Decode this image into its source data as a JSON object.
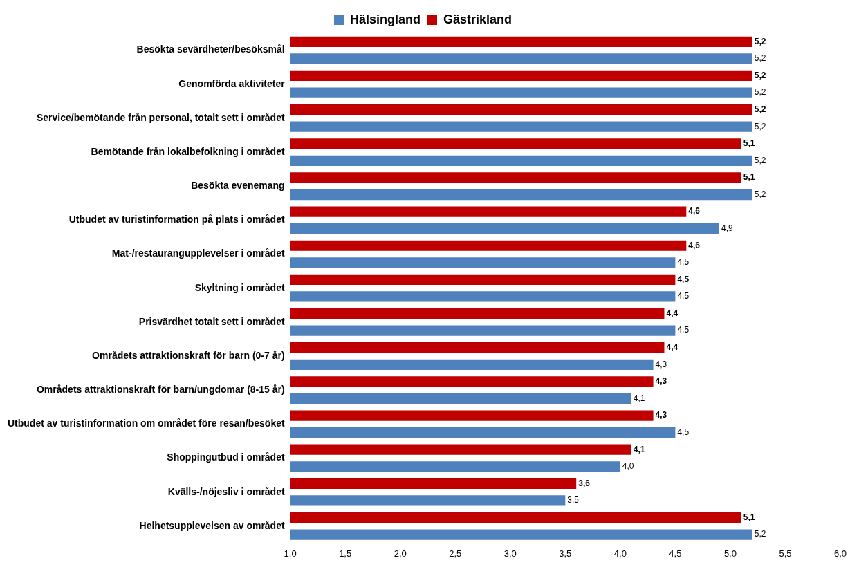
{
  "chart_data": {
    "type": "bar",
    "orientation": "horizontal",
    "legend": "top",
    "grid": false,
    "categories": [
      "Besökta sevärdheter/besöksmål",
      "Genomförda aktiviteter",
      "Service/bemötande från personal, totalt sett i området",
      "Bemötande från lokalbefolkning i området",
      "Besökta evenemang",
      "Utbudet av turistinformation på plats i området",
      "Mat-/restaurangupplevelser i området",
      "Skyltning i området",
      "Prisvärdhet totalt sett i området",
      "Områdets attraktionskraft för barn (0-7 år)",
      "Områdets attraktionskraft för barn/ungdomar (8-15 år)",
      "Utbudet av turistinformation om området före resan/besöket",
      "Shoppingutbud i området",
      "Kvälls-/nöjesliv i området",
      "Helhetsupplevelsen av området"
    ],
    "xlim": [
      1,
      6
    ],
    "xticks": [
      {
        "value": 1,
        "label": "1,0"
      },
      {
        "value": 1.5,
        "label": "1,5"
      },
      {
        "value": 2,
        "label": "2,0"
      },
      {
        "value": 2.5,
        "label": "2,5"
      },
      {
        "value": 3,
        "label": "3,0"
      },
      {
        "value": 3.5,
        "label": "3,5"
      },
      {
        "value": 4,
        "label": "4,0"
      },
      {
        "value": 4.5,
        "label": "4,5"
      },
      {
        "value": 5,
        "label": "5,0"
      },
      {
        "value": 5.5,
        "label": "5,5"
      },
      {
        "value": 6,
        "label": "6,0"
      }
    ],
    "series": [
      {
        "name": "Hälsingland",
        "color": "#4f81bd",
        "values": [
          5.2,
          5.2,
          5.2,
          5.2,
          5.2,
          4.9,
          4.5,
          4.5,
          4.5,
          4.3,
          4.1,
          4.5,
          4.0,
          3.5,
          5.2
        ],
        "value_labels": [
          "5,2",
          "5,2",
          "5,2",
          "5,2",
          "5,2",
          "4,9",
          "4,5",
          "4,5",
          "4,5",
          "4,3",
          "4,1",
          "4,5",
          "4,0",
          "3,5",
          "5,2"
        ]
      },
      {
        "name": "Gästrikland",
        "color": "#c00000",
        "values": [
          5.2,
          5.2,
          5.2,
          5.1,
          5.1,
          4.6,
          4.6,
          4.5,
          4.4,
          4.4,
          4.3,
          4.3,
          4.1,
          3.6,
          5.1
        ],
        "value_labels": [
          "5,2",
          "5,2",
          "5,2",
          "5,1",
          "5,1",
          "4,6",
          "4,6",
          "4,5",
          "4,4",
          "4,4",
          "4,3",
          "4,3",
          "4,1",
          "3,6",
          "5,1"
        ]
      }
    ]
  }
}
